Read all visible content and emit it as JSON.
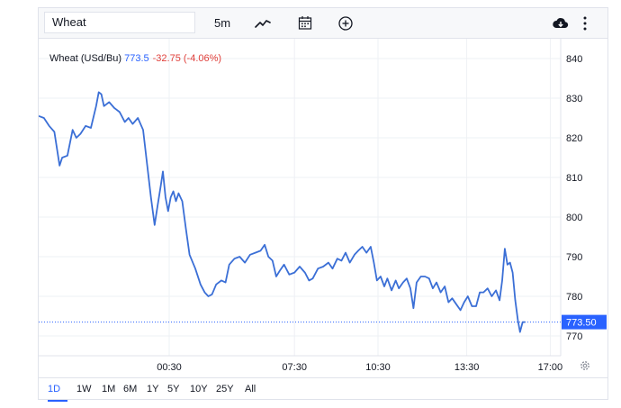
{
  "toolbar": {
    "symbol": "Wheat",
    "interval": "5m",
    "icons": [
      "line-chart-icon",
      "calendar-icon",
      "add-indicator-icon",
      "cloud-download-icon",
      "more-vertical-icon"
    ]
  },
  "legend": {
    "name": "Wheat (USd/Bu)",
    "price": "773.5",
    "change": "-32.75 (-4.06%)"
  },
  "colors": {
    "line": "#3b6fd6",
    "accent": "#2962ff",
    "negative": "#e0403b",
    "grid": "#eef0f4"
  },
  "ranges": {
    "items": [
      "1D",
      "1W",
      "1M",
      "6M",
      "1Y",
      "5Y",
      "10Y",
      "25Y",
      "All"
    ],
    "active": "1D"
  },
  "chart_data": {
    "type": "line",
    "ylim": [
      765,
      845
    ],
    "y_ticks": [
      770,
      780,
      790,
      800,
      810,
      820,
      830,
      840
    ],
    "x_ticks": [
      {
        "t": 0.25,
        "label": "00:30"
      },
      {
        "t": 0.49,
        "label": "07:30"
      },
      {
        "t": 0.65,
        "label": "10:30"
      },
      {
        "t": 0.82,
        "label": "13:30"
      },
      {
        "t": 0.98,
        "label": "17:00"
      }
    ],
    "last_price_label": "773.50",
    "last_price": 773.5,
    "grid": true,
    "series": [
      {
        "values": [
          [
            0.0,
            825.5
          ],
          [
            0.01,
            825.0
          ],
          [
            0.02,
            823.0
          ],
          [
            0.03,
            821.5
          ],
          [
            0.04,
            813.0
          ],
          [
            0.045,
            815.0
          ],
          [
            0.055,
            815.5
          ],
          [
            0.065,
            822.0
          ],
          [
            0.072,
            820.0
          ],
          [
            0.08,
            821.0
          ],
          [
            0.09,
            823.0
          ],
          [
            0.1,
            822.5
          ],
          [
            0.11,
            828.0
          ],
          [
            0.115,
            831.5
          ],
          [
            0.12,
            831.0
          ],
          [
            0.125,
            828.0
          ],
          [
            0.135,
            829.0
          ],
          [
            0.145,
            827.5
          ],
          [
            0.155,
            826.5
          ],
          [
            0.165,
            824.0
          ],
          [
            0.172,
            825.0
          ],
          [
            0.18,
            823.5
          ],
          [
            0.19,
            825.0
          ],
          [
            0.2,
            822.0
          ],
          [
            0.208,
            813.0
          ],
          [
            0.215,
            805.0
          ],
          [
            0.222,
            798.0
          ],
          [
            0.228,
            803.0
          ],
          [
            0.234,
            808.0
          ],
          [
            0.238,
            811.5
          ],
          [
            0.243,
            805.0
          ],
          [
            0.248,
            801.5
          ],
          [
            0.253,
            805.0
          ],
          [
            0.258,
            806.5
          ],
          [
            0.263,
            804.0
          ],
          [
            0.268,
            806.0
          ],
          [
            0.275,
            804.0
          ],
          [
            0.282,
            797.0
          ],
          [
            0.289,
            790.5
          ],
          [
            0.3,
            787.0
          ],
          [
            0.31,
            783.0
          ],
          [
            0.318,
            781.0
          ],
          [
            0.325,
            780.0
          ],
          [
            0.332,
            780.5
          ],
          [
            0.34,
            783.0
          ],
          [
            0.35,
            784.0
          ],
          [
            0.358,
            783.5
          ],
          [
            0.365,
            788.0
          ],
          [
            0.375,
            789.5
          ],
          [
            0.385,
            790.0
          ],
          [
            0.395,
            788.5
          ],
          [
            0.405,
            790.5
          ],
          [
            0.415,
            791.0
          ],
          [
            0.425,
            791.5
          ],
          [
            0.433,
            793.0
          ],
          [
            0.44,
            790.0
          ],
          [
            0.448,
            789.0
          ],
          [
            0.455,
            785.0
          ],
          [
            0.462,
            786.5
          ],
          [
            0.47,
            788.0
          ],
          [
            0.48,
            785.5
          ],
          [
            0.49,
            786.0
          ],
          [
            0.5,
            787.5
          ],
          [
            0.51,
            786.0
          ],
          [
            0.518,
            784.0
          ],
          [
            0.525,
            784.5
          ],
          [
            0.535,
            787.0
          ],
          [
            0.545,
            787.5
          ],
          [
            0.555,
            788.5
          ],
          [
            0.563,
            787.0
          ],
          [
            0.572,
            789.5
          ],
          [
            0.58,
            789.0
          ],
          [
            0.588,
            791.0
          ],
          [
            0.596,
            788.5
          ],
          [
            0.605,
            790.5
          ],
          [
            0.612,
            791.5
          ],
          [
            0.62,
            792.5
          ],
          [
            0.628,
            791.0
          ],
          [
            0.636,
            792.5
          ],
          [
            0.642,
            788.5
          ],
          [
            0.648,
            784.0
          ],
          [
            0.655,
            785.0
          ],
          [
            0.662,
            782.5
          ],
          [
            0.668,
            784.5
          ],
          [
            0.676,
            781.5
          ],
          [
            0.684,
            784.0
          ],
          [
            0.69,
            782.0
          ],
          [
            0.698,
            783.5
          ],
          [
            0.705,
            784.5
          ],
          [
            0.712,
            782.0
          ],
          [
            0.718,
            777.0
          ],
          [
            0.724,
            783.5
          ],
          [
            0.732,
            785.0
          ],
          [
            0.74,
            785.0
          ],
          [
            0.748,
            784.5
          ],
          [
            0.755,
            782.0
          ],
          [
            0.762,
            783.5
          ],
          [
            0.77,
            781.0
          ],
          [
            0.778,
            782.5
          ],
          [
            0.785,
            778.5
          ],
          [
            0.792,
            779.5
          ],
          [
            0.8,
            778.0
          ],
          [
            0.808,
            776.5
          ],
          [
            0.815,
            778.5
          ],
          [
            0.822,
            780.0
          ],
          [
            0.83,
            777.5
          ],
          [
            0.838,
            777.5
          ],
          [
            0.845,
            781.0
          ],
          [
            0.852,
            781.0
          ],
          [
            0.86,
            782.0
          ],
          [
            0.868,
            780.0
          ],
          [
            0.876,
            781.5
          ],
          [
            0.883,
            779.0
          ],
          [
            0.888,
            784.0
          ],
          [
            0.893,
            792.0
          ],
          [
            0.898,
            788.0
          ],
          [
            0.903,
            788.5
          ],
          [
            0.908,
            786.0
          ],
          [
            0.913,
            779.0
          ],
          [
            0.918,
            774.0
          ],
          [
            0.922,
            771.0
          ],
          [
            0.927,
            773.5
          ],
          [
            0.932,
            773.5
          ]
        ]
      }
    ]
  }
}
